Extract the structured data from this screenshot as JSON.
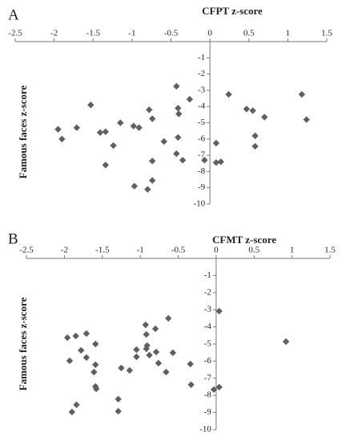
{
  "chart_data": [
    {
      "type": "scatter",
      "label": "A",
      "title": "CFPT z-score",
      "y_label": "Famous faces z-score",
      "color": "#5f5f5f",
      "xlim": [
        -2.5,
        1.5
      ],
      "ylim": [
        -10,
        0
      ],
      "xticks": [
        -2.5,
        -2,
        -1.5,
        -1,
        -0.5,
        0,
        0.5,
        1,
        1.5
      ],
      "yticks": [
        -1,
        -2,
        -3,
        -4,
        -5,
        -6,
        -7,
        -8,
        -9,
        -10
      ],
      "x": [
        -1.95,
        -1.9,
        -1.71,
        -1.53,
        -1.41,
        -1.34,
        -1.34,
        -1.24,
        -1.15,
        -0.98,
        -0.91,
        -0.97,
        -0.8,
        -0.78,
        -0.74,
        -0.74,
        -0.74,
        -0.59,
        -0.43,
        -0.41,
        -0.4,
        -0.41,
        -0.43,
        -0.35,
        -0.26,
        -0.07,
        0.08,
        0.08,
        0.14,
        0.24,
        0.47,
        0.55,
        0.58,
        0.58,
        0.7,
        1.18,
        1.24
      ],
      "y": [
        -5.4,
        -6.0,
        -5.3,
        -3.9,
        -5.6,
        -5.55,
        -7.6,
        -6.4,
        -5.0,
        -5.2,
        -5.3,
        -8.9,
        -9.1,
        -4.2,
        -4.75,
        -7.35,
        -8.55,
        -6.15,
        -2.75,
        -4.1,
        -4.45,
        -5.9,
        -6.9,
        -7.3,
        -3.55,
        -7.3,
        -6.25,
        -7.45,
        -7.4,
        -3.25,
        -4.15,
        -4.25,
        -5.8,
        -6.45,
        -4.65,
        -3.25,
        -4.8
      ]
    },
    {
      "type": "scatter",
      "label": "B",
      "title": "CFMT z-score",
      "y_label": "Famous faces z-score",
      "color": "#5f5f5f",
      "xlim": [
        -2.5,
        1.5
      ],
      "ylim": [
        -10,
        0
      ],
      "xticks": [
        -2.5,
        -2,
        -1.5,
        -1,
        -0.5,
        0,
        0.5,
        1,
        1.5
      ],
      "yticks": [
        -1,
        -2,
        -3,
        -4,
        -5,
        -6,
        -7,
        -8,
        -9,
        -10
      ],
      "x": [
        -1.96,
        -1.93,
        -1.9,
        -1.84,
        -1.85,
        -1.78,
        -1.71,
        -1.71,
        -1.61,
        -1.59,
        -1.59,
        -1.59,
        -1.58,
        -1.29,
        -1.29,
        -1.25,
        -1.14,
        -1.05,
        -1.05,
        -0.92,
        -0.92,
        -0.91,
        -0.88,
        -0.93,
        -0.8,
        -0.79,
        -0.76,
        -0.66,
        -0.63,
        -0.57,
        -0.34,
        -0.33,
        -0.03,
        0.04,
        0.04,
        0.92
      ],
      "y": [
        -4.63,
        -5.98,
        -8.97,
        -8.55,
        -4.53,
        -5.37,
        -4.39,
        -5.79,
        -6.64,
        -5.0,
        -6.21,
        -7.48,
        -7.62,
        -8.22,
        -8.93,
        -6.4,
        -6.54,
        -5.33,
        -5.75,
        -5.28,
        -4.44,
        -5.09,
        -5.65,
        -3.88,
        -4.11,
        -5.47,
        -6.12,
        -6.64,
        -3.5,
        -5.51,
        -6.17,
        -7.38,
        -7.66,
        -7.52,
        -3.08,
        -4.86
      ]
    }
  ]
}
